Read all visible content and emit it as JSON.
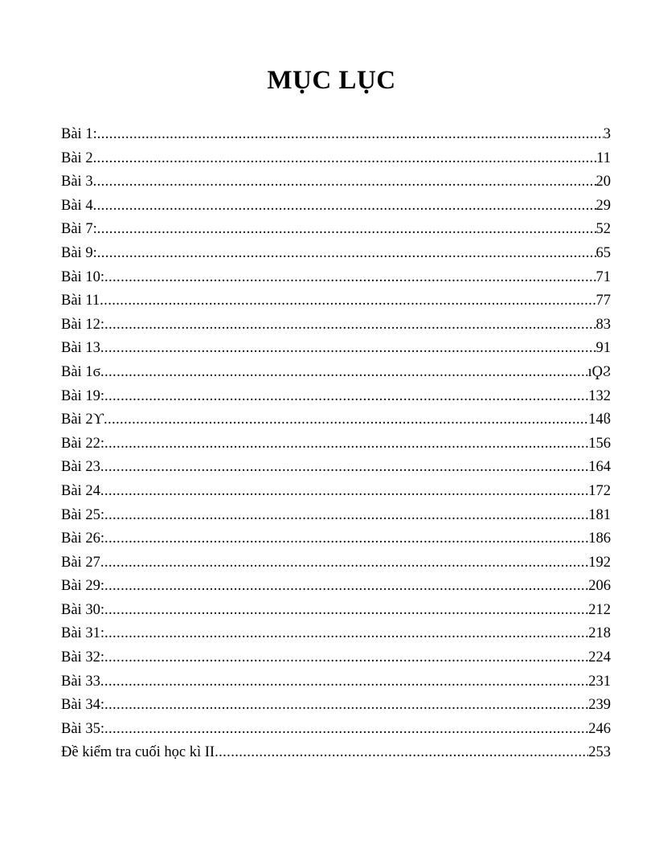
{
  "title": "MỤC LỤC",
  "entries": [
    {
      "label": "Bài 1: ",
      "page": "3"
    },
    {
      "label": "Bài 2",
      "page": "11"
    },
    {
      "label": "Bài 3",
      "page": "20"
    },
    {
      "label": "Bài 4",
      "page": "29"
    },
    {
      "label": "Bài 7:",
      "page": "52"
    },
    {
      "label": "Bài 9:",
      "page": "65"
    },
    {
      "label": "Bài 10:",
      "page": "71"
    },
    {
      "label": "Bài 11",
      "page": "77"
    },
    {
      "label": "Bài 12:",
      "page": "83"
    },
    {
      "label": "Bài 13",
      "page": "91"
    },
    {
      "label": "Bài 1ϭ",
      "page": "ıϘϨ"
    },
    {
      "label": "Bài 19:",
      "page": "132"
    },
    {
      "label": "Bài 2ϒ",
      "page": "14ϐ"
    },
    {
      "label": "Bài 22:",
      "page": "156"
    },
    {
      "label": "Bài 23",
      "page": "164"
    },
    {
      "label": "Bài 24",
      "page": "172"
    },
    {
      "label": "Bài 25:",
      "page": "181"
    },
    {
      "label": "Bài 26:",
      "page": "186"
    },
    {
      "label": "Bài 27",
      "page": "192"
    },
    {
      "label": "Bài 29:",
      "page": "206"
    },
    {
      "label": "Bài 30:",
      "page": "212"
    },
    {
      "label": "Bài 31:",
      "page": "218"
    },
    {
      "label": "Bài 32:",
      "page": "224"
    },
    {
      "label": "Bài 33",
      "page": "231"
    },
    {
      "label": "Bài 34:",
      "page": "239"
    },
    {
      "label": "Bài 35:",
      "page": "246"
    },
    {
      "label": "Đề kiểm tra cuối học kì II",
      "page": "253"
    }
  ]
}
